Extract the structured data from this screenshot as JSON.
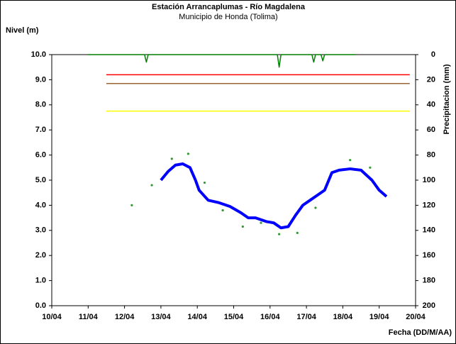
{
  "chart_data": {
    "type": "line",
    "title": "Estación Arrancaplumas - Río Magdalena",
    "subtitle": "Municipio de Honda (Tolima)",
    "ylabel": "Nivel (m)",
    "y2label": "Precipitacion (mm)",
    "xlabel": "Fecha (DD/M/AA)",
    "xlim": [
      0,
      10
    ],
    "xticks": [
      {
        "value": 0,
        "label": "10/04"
      },
      {
        "value": 1,
        "label": "11/04"
      },
      {
        "value": 2,
        "label": "12/04"
      },
      {
        "value": 3,
        "label": "13/04"
      },
      {
        "value": 4,
        "label": "14/04"
      },
      {
        "value": 5,
        "label": "15/04"
      },
      {
        "value": 6,
        "label": "16/04"
      },
      {
        "value": 7,
        "label": "17/04"
      },
      {
        "value": 8,
        "label": "18/04"
      },
      {
        "value": 9,
        "label": "19/04"
      },
      {
        "value": 10,
        "label": "20/04"
      }
    ],
    "ylim": [
      0,
      10
    ],
    "yticks": [
      {
        "value": 0,
        "label": "0.0"
      },
      {
        "value": 1,
        "label": "1.0"
      },
      {
        "value": 2,
        "label": "2.0"
      },
      {
        "value": 3,
        "label": "3.0"
      },
      {
        "value": 4,
        "label": "4.0"
      },
      {
        "value": 5,
        "label": "5.0"
      },
      {
        "value": 6,
        "label": "6.0"
      },
      {
        "value": 7,
        "label": "7.0"
      },
      {
        "value": 8,
        "label": "8.0"
      },
      {
        "value": 9,
        "label": "9.0"
      },
      {
        "value": 10,
        "label": "10.0"
      }
    ],
    "y2lim": [
      0,
      200
    ],
    "y2ticks": [
      0,
      20,
      40,
      60,
      80,
      100,
      120,
      140,
      160,
      180,
      200
    ],
    "y2inverted": true,
    "grid": false,
    "series": [
      {
        "color": "#ff0000",
        "x": [
          1.5,
          9.84
        ],
        "values": [
          9.2,
          9.2
        ]
      },
      {
        "color": "#996633",
        "x": [
          1.5,
          9.84
        ],
        "values": [
          8.85,
          8.85
        ]
      },
      {
        "color": "#ffff00",
        "x": [
          1.5,
          9.84
        ],
        "values": [
          7.75,
          7.75
        ]
      },
      {
        "color": "#0000ff",
        "width": 4,
        "x": [
          3.0,
          3.2,
          3.4,
          3.6,
          3.8,
          3.95,
          4.05,
          4.3,
          4.6,
          4.9,
          5.2,
          5.4,
          5.6,
          5.9,
          6.1,
          6.3,
          6.5,
          6.7,
          6.9,
          7.1,
          7.3,
          7.5,
          7.7,
          7.9,
          8.2,
          8.5,
          8.8,
          9.0,
          9.2
        ],
        "values": [
          5.0,
          5.35,
          5.6,
          5.65,
          5.5,
          5.0,
          4.6,
          4.2,
          4.1,
          3.95,
          3.7,
          3.5,
          3.5,
          3.35,
          3.3,
          3.1,
          3.15,
          3.6,
          4.0,
          4.2,
          4.4,
          4.6,
          5.3,
          5.4,
          5.45,
          5.4,
          5.0,
          4.6,
          4.35
        ]
      },
      {
        "color": "#339933",
        "type": "scatter",
        "x": [
          2.2,
          2.75,
          3.3,
          3.75,
          4.2,
          4.7,
          5.25,
          5.75,
          6.25,
          6.75,
          7.25,
          8.2,
          8.75
        ],
        "values": [
          4.0,
          4.8,
          5.85,
          6.05,
          4.9,
          3.8,
          3.15,
          3.3,
          2.85,
          2.9,
          3.9,
          5.8,
          5.5
        ]
      },
      {
        "color": "#008000",
        "axis": "y2",
        "x": [
          1.0,
          2.55,
          2.6,
          2.65,
          6.2,
          6.25,
          6.3,
          7.15,
          7.2,
          7.25,
          7.4,
          7.45,
          7.5,
          8.35
        ],
        "values": [
          0,
          0,
          6,
          0,
          0,
          10,
          0,
          0,
          6,
          0,
          0,
          5,
          0,
          0
        ]
      }
    ]
  }
}
